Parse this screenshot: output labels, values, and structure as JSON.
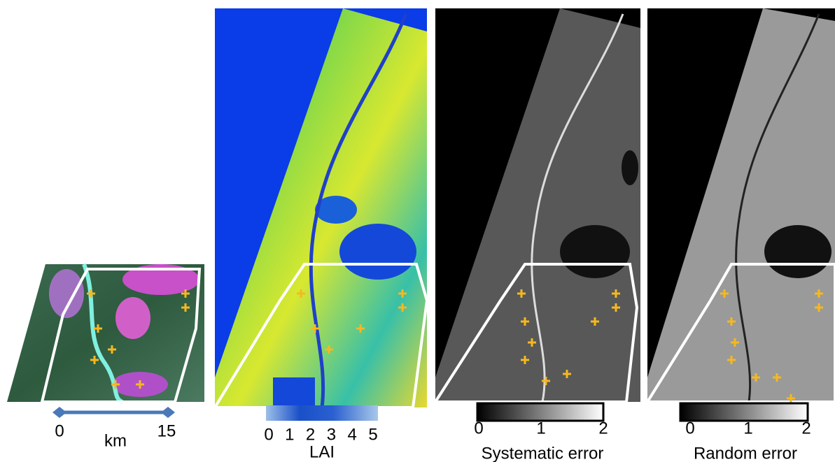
{
  "scale_bar": {
    "ticks": [
      0,
      15
    ],
    "unit": "km"
  },
  "colorbars": [
    {
      "ticks": [
        0,
        1,
        2,
        3,
        4,
        5
      ],
      "label": "LAI"
    },
    {
      "ticks": [
        0,
        1,
        2
      ],
      "label": "Systematic error"
    },
    {
      "ticks": [
        0,
        1,
        2
      ],
      "label": "Random error"
    }
  ]
}
